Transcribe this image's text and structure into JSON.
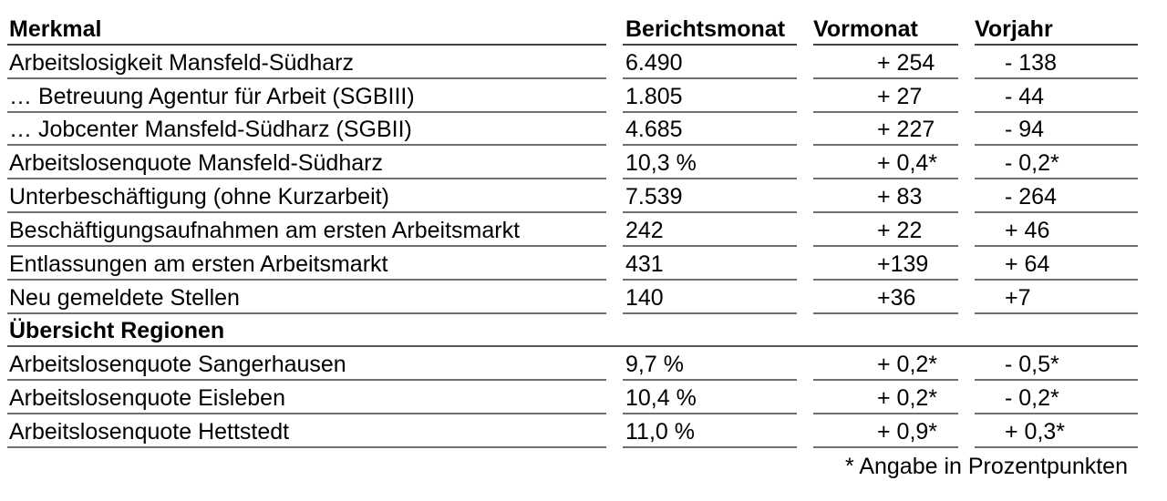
{
  "table": {
    "columns": [
      "Merkmal",
      "Berichtsmonat",
      "Vormonat",
      "Vorjahr"
    ],
    "rows": [
      {
        "merkmal": "Arbeitslosigkeit Mansfeld-Südharz",
        "berichtsmonat": "6.490",
        "vormonat": "+ 254",
        "vorjahr": "- 138"
      },
      {
        "merkmal": "… Betreuung Agentur für Arbeit (SGBIII)",
        "berichtsmonat": "1.805",
        "vormonat": "+ 27",
        "vorjahr": "- 44"
      },
      {
        "merkmal": "… Jobcenter Mansfeld-Südharz (SGBII)",
        "berichtsmonat": "4.685",
        "vormonat": "+ 227",
        "vorjahr": "- 94"
      },
      {
        "merkmal": "Arbeitslosenquote Mansfeld-Südharz",
        "berichtsmonat": "10,3 %",
        "vormonat": "+ 0,4*",
        "vorjahr": "- 0,2*"
      },
      {
        "merkmal": "Unterbeschäftigung (ohne Kurzarbeit)",
        "berichtsmonat": "7.539",
        "vormonat": "+ 83",
        "vorjahr": "- 264"
      },
      {
        "merkmal": "Beschäftigungsaufnahmen am ersten Arbeitsmarkt",
        "berichtsmonat": "242",
        "vormonat": "+ 22",
        "vorjahr": "+ 46"
      },
      {
        "merkmal": "Entlassungen am ersten Arbeitsmarkt",
        "berichtsmonat": "431",
        "vormonat": "+139",
        "vorjahr": "+ 64"
      },
      {
        "merkmal": "Neu gemeldete Stellen",
        "berichtsmonat": "140",
        "vormonat": "+36",
        "vorjahr": "+7"
      }
    ],
    "section_header": "Übersicht Regionen",
    "region_rows": [
      {
        "merkmal": "Arbeitslosenquote Sangerhausen",
        "berichtsmonat": "9,7 %",
        "vormonat": "+ 0,2*",
        "vorjahr": "- 0,5*"
      },
      {
        "merkmal": "Arbeitslosenquote Eisleben",
        "berichtsmonat": "10,4 %",
        "vormonat": "+ 0,2*",
        "vorjahr": "- 0,2*"
      },
      {
        "merkmal": "Arbeitslosenquote Hettstedt",
        "berichtsmonat": "11,0 %",
        "vormonat": "+ 0,9*",
        "vorjahr": "+ 0,3*"
      }
    ],
    "footnote": "* Angabe in Prozentpunkten"
  }
}
